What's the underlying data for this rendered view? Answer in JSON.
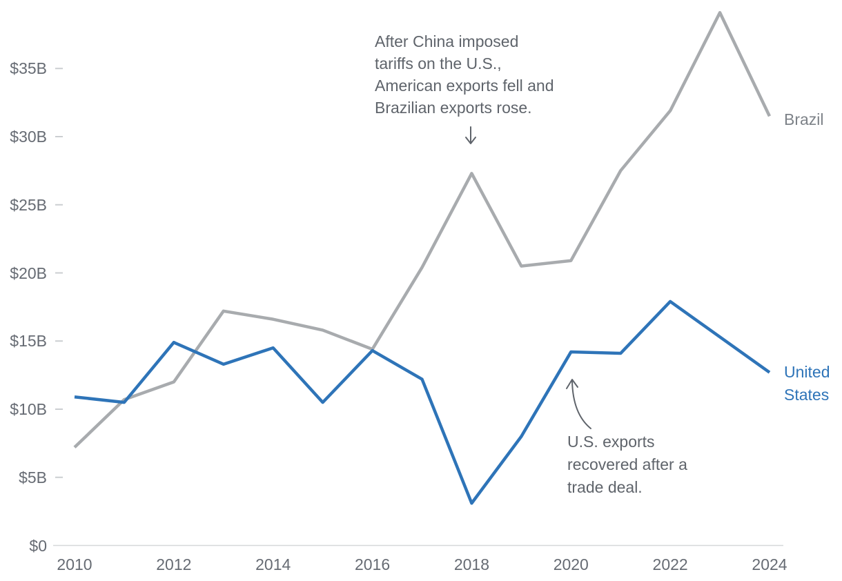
{
  "chart_data": {
    "type": "line",
    "x": [
      2010,
      2011,
      2012,
      2013,
      2014,
      2015,
      2016,
      2017,
      2018,
      2019,
      2020,
      2021,
      2022,
      2023,
      2024
    ],
    "series": [
      {
        "name": "Brazil",
        "color": "#a8abae",
        "values": [
          7.2,
          10.7,
          12.0,
          17.2,
          16.6,
          15.8,
          14.4,
          20.4,
          27.3,
          20.5,
          20.9,
          27.5,
          31.9,
          39.1,
          31.5
        ]
      },
      {
        "name": "United States",
        "color": "#2e74b8",
        "values": [
          10.9,
          10.5,
          14.9,
          13.3,
          14.5,
          10.5,
          14.3,
          12.2,
          3.1,
          8.0,
          14.2,
          14.1,
          17.9,
          15.3,
          12.7
        ]
      }
    ],
    "y_ticks": [
      {
        "value": 0,
        "label": "$0"
      },
      {
        "value": 5,
        "label": "$5B"
      },
      {
        "value": 10,
        "label": "$10B"
      },
      {
        "value": 15,
        "label": "$15B"
      },
      {
        "value": 20,
        "label": "$20B"
      },
      {
        "value": 25,
        "label": "$25B"
      },
      {
        "value": 30,
        "label": "$30B"
      },
      {
        "value": 35,
        "label": "$35B"
      }
    ],
    "x_ticks": [
      {
        "value": 2010,
        "label": "2010"
      },
      {
        "value": 2012,
        "label": "2012"
      },
      {
        "value": 2014,
        "label": "2014"
      },
      {
        "value": 2016,
        "label": "2016"
      },
      {
        "value": 2018,
        "label": "2018"
      },
      {
        "value": 2020,
        "label": "2020"
      },
      {
        "value": 2022,
        "label": "2022"
      },
      {
        "value": 2024,
        "label": "2024"
      }
    ],
    "ylim": [
      0,
      39.5
    ],
    "grid": false,
    "legend_position": "line-end-labels",
    "annotations": [
      {
        "id": "tariffs",
        "text": "After China imposed\ntariffs on the U.S.,\nAmerican exports fell and\nBrazilian exports rose.",
        "arrow": "down-arrow"
      },
      {
        "id": "trade-deal",
        "text": "U.S. exports\nrecovered after a\ntrade deal.",
        "arrow": "curved-up-arrow"
      }
    ],
    "colors": {
      "brazil_line": "#a8abae",
      "united_states_line": "#2e74b8",
      "brazil_label": "#7d8288",
      "united_states_label": "#2e74b8",
      "annotation_text": "#5f646b",
      "axis_text": "#666b73",
      "axis_line": "#d5d7d9",
      "tick_mark": "#cbced1"
    }
  }
}
